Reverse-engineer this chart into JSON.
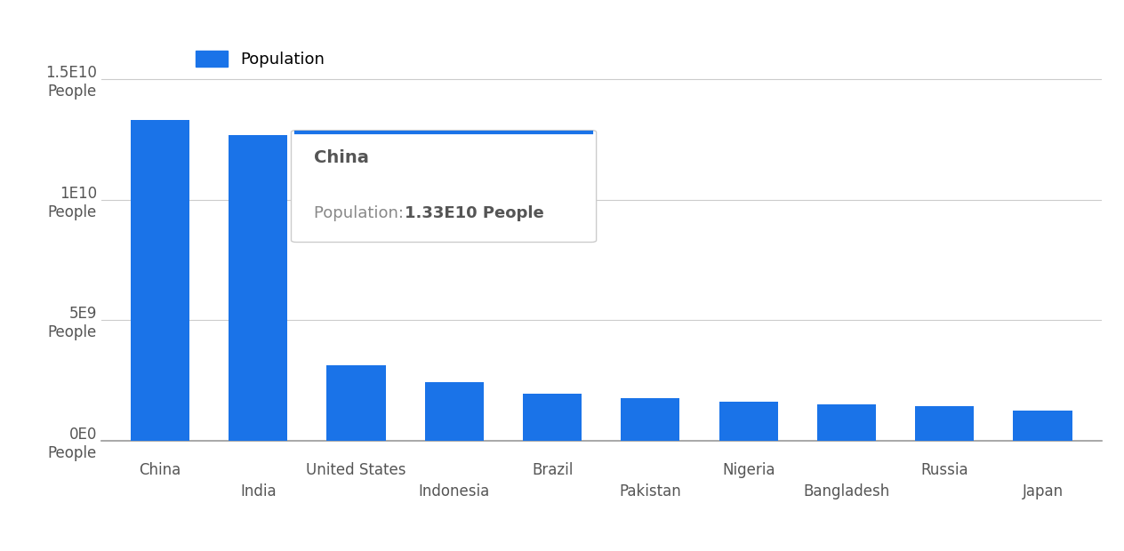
{
  "categories": [
    "China",
    "India",
    "United States",
    "Indonesia",
    "Brazil",
    "Pakistan",
    "Nigeria",
    "Bangladesh",
    "Russia",
    "Japan"
  ],
  "values": [
    13300000000.0,
    12700000000.0,
    3140000000.0,
    2420000000.0,
    1960000000.0,
    1760000000.0,
    1620000000.0,
    1520000000.0,
    1430000000.0,
    1270000000.0
  ],
  "bar_color": "#1a73e8",
  "legend_label": "Population",
  "ylim": [
    0,
    16000000000.0
  ],
  "yticks": [
    0,
    5000000000,
    10000000000,
    15000000000
  ],
  "ytick_labels": [
    "0E0\nPeople",
    "5E9\nPeople",
    "1E10\nPeople",
    "1.5E10\nPeople"
  ],
  "grid_color": "#cccccc",
  "text_color": "#555555",
  "tooltip_title": "China",
  "tooltip_body_prefix": "Population: ",
  "tooltip_body_value": "1.33E10 People",
  "background_color": "#ffffff"
}
